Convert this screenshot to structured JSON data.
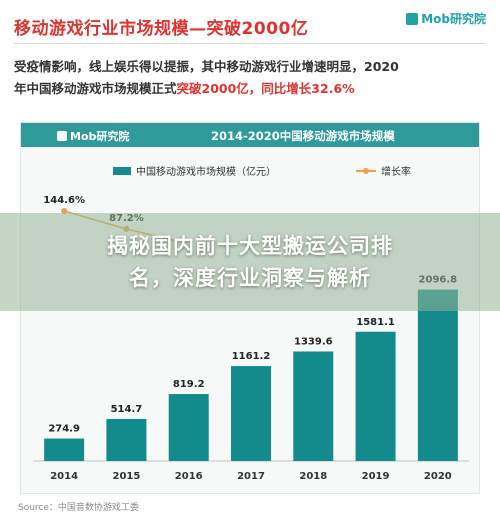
{
  "header": {
    "headline": "移动游戏行业市场规模—突破2000亿",
    "brand": "Mob研究院"
  },
  "intro": {
    "line1": "受疫情影响，线上娱乐得以提振，其中移动游戏行业增速明显，2020",
    "line2_prefix": "年中国移动游戏市场规模正式",
    "line2_highlight": "突破2000亿，同比增长32.6%"
  },
  "panel": {
    "brand": "Mob研究院",
    "title": "2014-2020中国移动游戏市场规模"
  },
  "overlay": {
    "line1": "揭秘国内前十大型搬运公司排",
    "line2": "名，深度行业洞察与解析"
  },
  "source": "Source：中国音数协游戏工委",
  "colors": {
    "bar": "#138a8c",
    "line": "#e9a24a",
    "headline": "#e0332f",
    "panel_bar": "#2f9a9a"
  },
  "chart_data": {
    "type": "bar",
    "title": "2014-2020中国移动游戏市场规模",
    "categories": [
      "2014",
      "2015",
      "2016",
      "2017",
      "2018",
      "2019",
      "2020"
    ],
    "series": [
      {
        "name": "中国移动游戏市场规模（亿元）",
        "type": "bar",
        "values": [
          274.9,
          514.7,
          819.2,
          1161.2,
          1339.6,
          1581.1,
          2096.8
        ]
      },
      {
        "name": "增长率",
        "type": "line",
        "values": [
          144.6,
          87.2,
          null,
          null,
          null,
          null,
          null
        ],
        "labels": [
          "144.6%",
          "87.2%",
          "",
          "",
          "",
          "",
          ""
        ]
      }
    ],
    "ylim": [
      0,
      2300
    ],
    "grid": false,
    "legend": "top"
  }
}
